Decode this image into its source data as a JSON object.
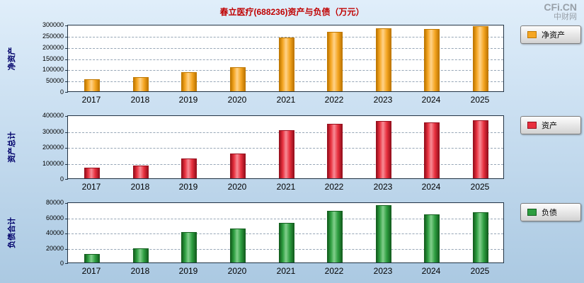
{
  "title": "春立医疗(688236)资产与负债（万元）",
  "logo": {
    "line1": "CFi.CN",
    "line2": "中财网"
  },
  "chart_data": [
    {
      "type": "bar",
      "panel": "net-assets",
      "ylabel": "净资产",
      "legend": "净资产",
      "color": "#F5A623",
      "color_light": "#FFD38A",
      "color_dark": "#C07800",
      "categories": [
        "2017",
        "2018",
        "2019",
        "2020",
        "2021",
        "2022",
        "2023",
        "2024",
        "2025"
      ],
      "values": [
        55000,
        62000,
        85000,
        107000,
        240000,
        265000,
        280000,
        278000,
        290000
      ],
      "ylim": [
        0,
        300000
      ],
      "yticks": [
        0,
        50000,
        100000,
        150000,
        200000,
        250000,
        300000
      ],
      "grid": "horizontal-dashed",
      "legend_position": "right"
    },
    {
      "type": "bar",
      "panel": "total-assets",
      "ylabel": "资产总计",
      "legend": "资产",
      "color": "#E8303E",
      "color_light": "#F78C96",
      "color_dark": "#99101E",
      "categories": [
        "2017",
        "2018",
        "2019",
        "2020",
        "2021",
        "2022",
        "2023",
        "2024",
        "2025"
      ],
      "values": [
        65000,
        82000,
        125000,
        155000,
        300000,
        340000,
        360000,
        350000,
        363000
      ],
      "ylim": [
        0,
        400000
      ],
      "yticks": [
        0,
        100000,
        200000,
        300000,
        400000
      ],
      "grid": "horizontal-dashed",
      "legend_position": "right"
    },
    {
      "type": "bar",
      "panel": "total-liabilities",
      "ylabel": "负债合计",
      "legend": "负债",
      "color": "#2E9E40",
      "color_light": "#82CF8C",
      "color_dark": "#14601F",
      "categories": [
        "2017",
        "2018",
        "2019",
        "2020",
        "2021",
        "2022",
        "2023",
        "2024",
        "2025"
      ],
      "values": [
        11000,
        19000,
        40000,
        45000,
        52000,
        68000,
        75000,
        63000,
        66000
      ],
      "ylim": [
        0,
        80000
      ],
      "yticks": [
        0,
        20000,
        40000,
        60000,
        80000
      ],
      "grid": "horizontal-dashed",
      "legend_position": "right"
    }
  ]
}
